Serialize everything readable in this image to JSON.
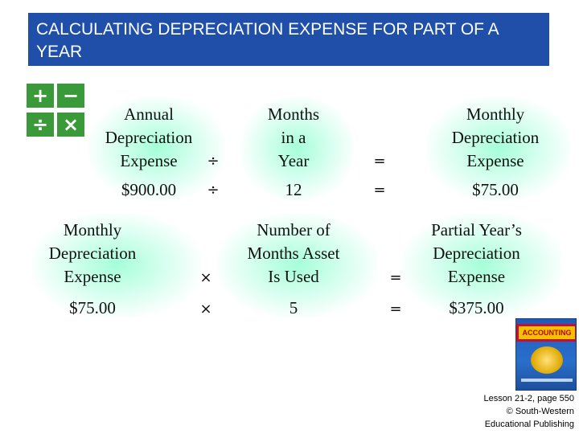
{
  "title": "CALCULATING DEPRECIATION EXPENSE FOR PART OF A YEAR",
  "colors": {
    "title_bar": "#1f4fa8",
    "glow": "#96ffd2",
    "calc_key": "#3a9a3a"
  },
  "calc_icon": {
    "keys": [
      "+",
      "−",
      "÷",
      "×"
    ]
  },
  "row1": {
    "col1": {
      "line1": "Annual",
      "line2": "Depreciation",
      "line3": "Expense",
      "value": "$900.00"
    },
    "op1": "÷",
    "col2": {
      "line1": "Months",
      "line2": "in a",
      "line3": "Year",
      "value": "12"
    },
    "op2": "=",
    "col3": {
      "line1": "Monthly",
      "line2": "Depreciation",
      "line3": "Expense",
      "value": "$75.00"
    }
  },
  "row2": {
    "col1": {
      "line1": "Monthly",
      "line2": "Depreciation",
      "line3": "Expense",
      "value": "$75.00"
    },
    "op1": "×",
    "col2": {
      "line1": "Number of",
      "line2": "Months Asset",
      "line3": "Is Used",
      "value": "5"
    },
    "op2": "=",
    "col3": {
      "line1": "Partial Year’s",
      "line2": "Depreciation",
      "line3": "Expense",
      "value": "$375.00"
    }
  },
  "book_cover": {
    "word": "ACCOUNTING"
  },
  "credit": {
    "line1": "Lesson 21-2, page 550",
    "line2": "© South-Western",
    "line3": "Educational Publishing"
  }
}
